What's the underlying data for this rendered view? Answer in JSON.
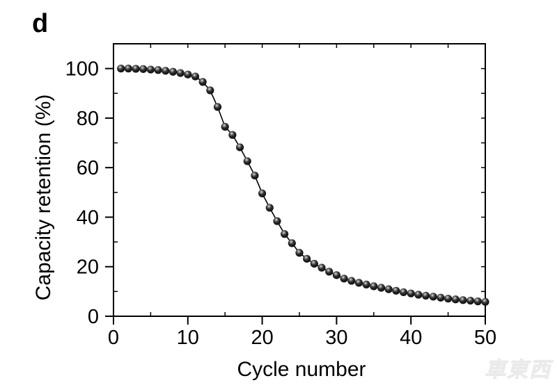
{
  "panel_label": "d",
  "watermark": {
    "text": "車東西",
    "color": "#f0f0f0"
  },
  "colors": {
    "foreground": "#000000",
    "background": "#ffffff",
    "marker_body": "#000000",
    "marker_highlight": "#e6e6e6",
    "watermark": "#f0f0f0"
  },
  "chart_data": {
    "type": "line",
    "title": "",
    "xlabel": "Cycle number",
    "ylabel": "Capacity retention (%)",
    "xlim": [
      0,
      50
    ],
    "ylim": [
      0,
      110
    ],
    "grid": false,
    "legend_position": "none",
    "marker": "glossy-sphere",
    "x_major_ticks": [
      0,
      10,
      20,
      30,
      40,
      50
    ],
    "x_minor_ticks": [
      5,
      15,
      25,
      35,
      45
    ],
    "y_major_ticks": [
      0,
      20,
      40,
      60,
      80,
      100
    ],
    "y_minor_ticks": [
      10,
      30,
      50,
      70,
      90
    ],
    "series": [
      {
        "name": "Capacity retention",
        "x": [
          1,
          2,
          3,
          4,
          5,
          6,
          7,
          8,
          9,
          10,
          11,
          12,
          13,
          14,
          15,
          16,
          17,
          18,
          19,
          20,
          21,
          22,
          23,
          24,
          25,
          26,
          27,
          28,
          29,
          30,
          31,
          32,
          33,
          34,
          35,
          36,
          37,
          38,
          39,
          40,
          41,
          42,
          43,
          44,
          45,
          46,
          47,
          48,
          49,
          50
        ],
        "y": [
          100,
          100,
          99.9,
          99.8,
          99.6,
          99.4,
          99.1,
          98.7,
          98.2,
          97.6,
          96.8,
          94.6,
          91.2,
          84.5,
          76.5,
          73.2,
          68.2,
          62.6,
          56.8,
          49.6,
          43.8,
          38.4,
          33.2,
          29.5,
          25.6,
          23.2,
          21.2,
          19.6,
          18.0,
          16.6,
          15.2,
          14.3,
          13.5,
          12.8,
          12.1,
          11.5,
          10.9,
          10.3,
          9.7,
          9.2,
          8.7,
          8.3,
          7.9,
          7.5,
          7.1,
          6.8,
          6.5,
          6.3,
          6.0,
          5.8
        ]
      }
    ]
  }
}
